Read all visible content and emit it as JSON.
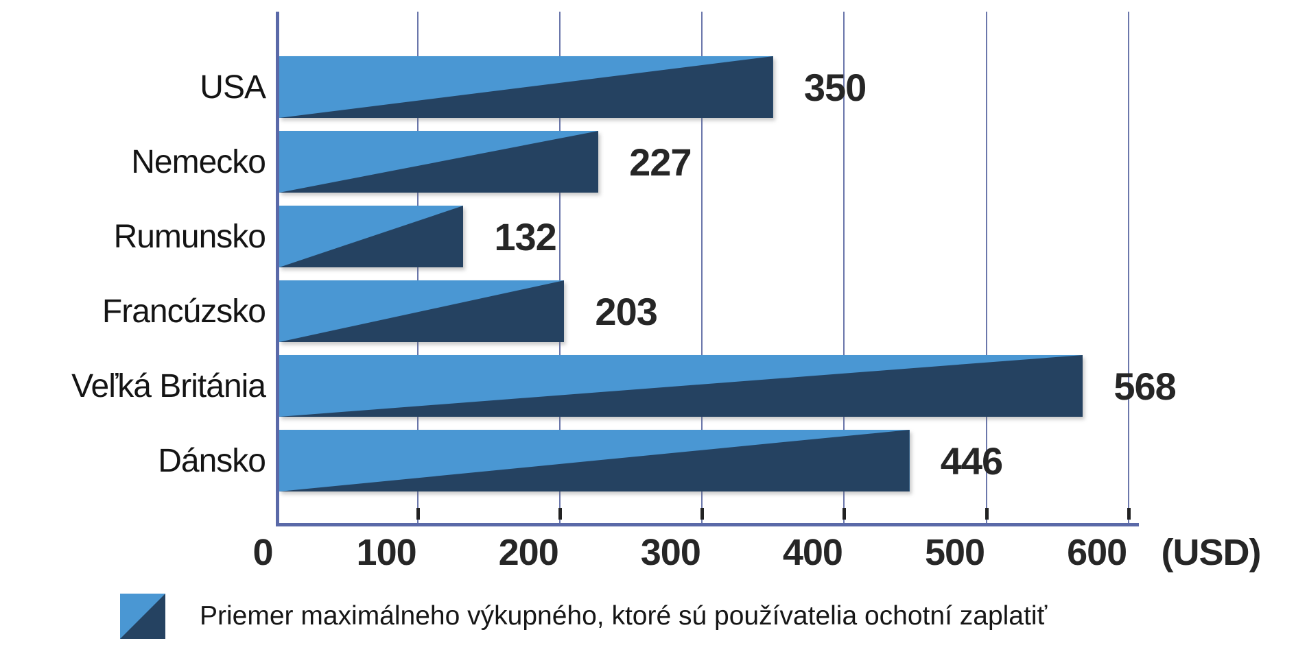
{
  "chart_data": {
    "type": "bar",
    "orientation": "horizontal",
    "title": "",
    "categories": [
      "USA",
      "Nemecko",
      "Rumunsko",
      "Francúzsko",
      "Veľká Británia",
      "Dánsko"
    ],
    "values": [
      350,
      227,
      132,
      203,
      568,
      446
    ],
    "value_labels": [
      "350",
      "227",
      "132",
      "203",
      "568",
      "446"
    ],
    "x_ticks": [
      0,
      100,
      200,
      300,
      400,
      500,
      600
    ],
    "x_tick_labels": [
      "0",
      "100",
      "200",
      "300",
      "400",
      "500",
      "600"
    ],
    "x_unit_label": "(USD)",
    "xlim": [
      0,
      605
    ],
    "grid": true,
    "legend_position": "bottom",
    "legend": {
      "label": "Priemer maximálneho výkupného, ktoré sú používatelia ochotní zaplatiť"
    },
    "colors": {
      "bar_light": "#4a97d3",
      "bar_dark": "#254261",
      "axis_line": "#5a69a8",
      "gridline": "#6b77ab",
      "tick_mark": "#222222",
      "text": "#262626"
    }
  }
}
